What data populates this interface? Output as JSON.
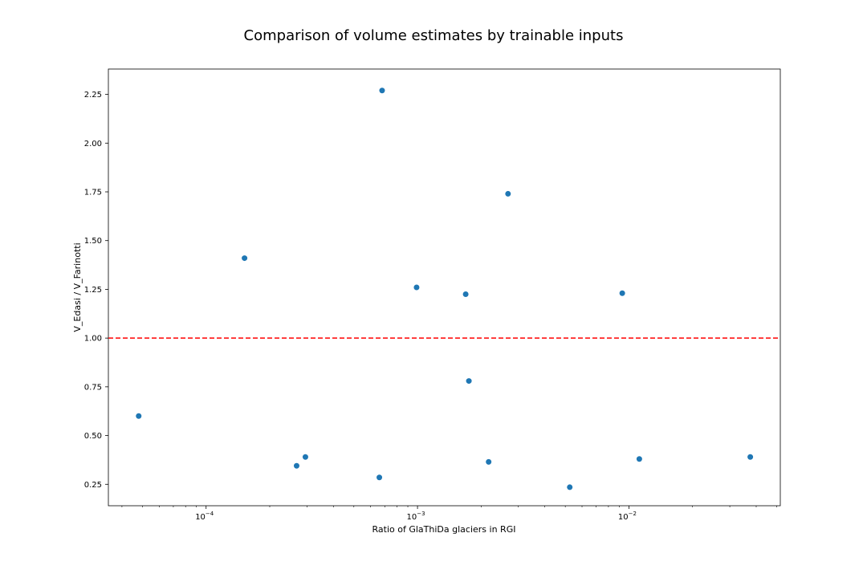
{
  "chart_data": {
    "type": "scatter",
    "title": "Comparison of volume estimates by trainable inputs",
    "xlabel": "Ratio of GlaThiDa glaciers in RGI",
    "ylabel": "V_Edasi / V_Farinotti",
    "xscale": "log",
    "xlim": [
      3.45e-05,
      0.052
    ],
    "ylim": [
      0.14,
      2.38
    ],
    "x_ticks": [
      {
        "value": 0.0001,
        "base": "10",
        "exp": "−4"
      },
      {
        "value": 0.001,
        "base": "10",
        "exp": "−3"
      },
      {
        "value": 0.01,
        "base": "10",
        "exp": "−2"
      }
    ],
    "y_ticks": [
      "0.25",
      "0.50",
      "0.75",
      "1.00",
      "1.25",
      "1.50",
      "1.75",
      "2.00",
      "2.25"
    ],
    "reference_line": {
      "y": 1.0,
      "color": "#ff0000",
      "style": "dashed"
    },
    "marker_color": "#1f77b4",
    "grid": false,
    "points": [
      {
        "x": 4.8e-05,
        "y": 0.6
      },
      {
        "x": 0.000152,
        "y": 1.41
      },
      {
        "x": 0.000268,
        "y": 0.345
      },
      {
        "x": 0.000295,
        "y": 0.39
      },
      {
        "x": 0.00066,
        "y": 0.285
      },
      {
        "x": 0.00068,
        "y": 2.27
      },
      {
        "x": 0.00099,
        "y": 1.26
      },
      {
        "x": 0.00169,
        "y": 1.225
      },
      {
        "x": 0.00175,
        "y": 0.78
      },
      {
        "x": 0.00217,
        "y": 0.365
      },
      {
        "x": 0.00268,
        "y": 1.74
      },
      {
        "x": 0.00525,
        "y": 0.235
      },
      {
        "x": 0.0093,
        "y": 1.23
      },
      {
        "x": 0.0112,
        "y": 0.38
      },
      {
        "x": 0.0375,
        "y": 0.39
      }
    ]
  }
}
